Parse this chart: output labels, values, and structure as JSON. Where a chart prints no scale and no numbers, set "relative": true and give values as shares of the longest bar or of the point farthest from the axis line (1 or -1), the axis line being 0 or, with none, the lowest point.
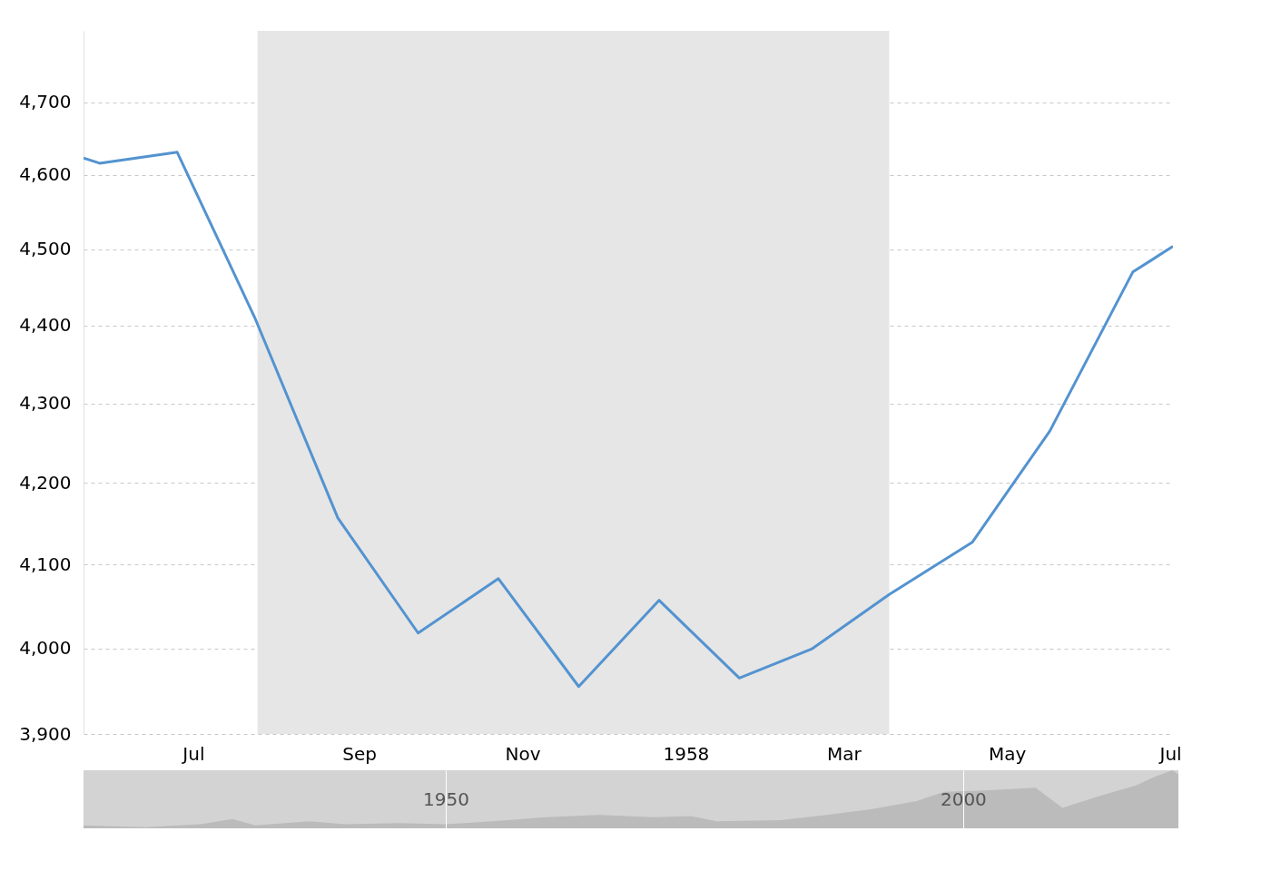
{
  "chart_data": [
    {
      "type": "line",
      "x": [
        "1957-05-21",
        "1957-05-27",
        "1957-06-25",
        "1957-07-24",
        "1957-08-24",
        "1957-09-23",
        "1957-10-23",
        "1957-11-22",
        "1957-12-22",
        "1958-01-21",
        "1958-02-17",
        "1958-03-18",
        "1958-04-18",
        "1958-05-17",
        "1958-06-17",
        "1958-07-02"
      ],
      "series": [
        {
          "color": "#5393d0",
          "values": [
            4623,
            4616,
            4631,
            4410,
            4157,
            4018,
            4083,
            3955,
            4057,
            3965,
            3999,
            4064,
            4127,
            4265,
            4470,
            4504
          ]
        }
      ],
      "xlim": [
        "1957-05-21",
        "1958-07-02"
      ],
      "xticks": [
        {
          "value": "1957-07-01",
          "label": "Jul"
        },
        {
          "value": "1957-09-01",
          "label": "Sep"
        },
        {
          "value": "1957-11-01",
          "label": "Nov"
        },
        {
          "value": "1958-01-01",
          "label": "1958"
        },
        {
          "value": "1958-03-01",
          "label": "Mar"
        },
        {
          "value": "1958-05-01",
          "label": "May"
        },
        {
          "value": "1958-07-01",
          "label": "Jul"
        }
      ],
      "ylim": [
        3900,
        4800
      ],
      "log": true,
      "yticks": [
        {
          "value": 3900,
          "label": "3,900"
        },
        {
          "value": 4000,
          "label": "4,000"
        },
        {
          "value": 4100,
          "label": "4,100"
        },
        {
          "value": 4200,
          "label": "4,200"
        },
        {
          "value": 4300,
          "label": "4,300"
        },
        {
          "value": 4400,
          "label": "4,400"
        },
        {
          "value": 4500,
          "label": "4,500"
        },
        {
          "value": 4600,
          "label": "4,600"
        },
        {
          "value": 4700,
          "label": "4,700"
        }
      ],
      "bands": [
        {
          "axis": "x",
          "from": "1957-07-25",
          "to": "1958-03-18",
          "color": "#e6e6e6"
        }
      ],
      "grid": "y",
      "legend": false
    },
    {
      "type": "area",
      "relative": true,
      "x": [
        1915.0,
        1921,
        1926.3,
        1929.4,
        1931.6,
        1936.8,
        1940.3,
        1945.5,
        1950,
        1956,
        1959.6,
        1964.8,
        1970.1,
        1973.7,
        1976.2,
        1982.4,
        1986.8,
        1991.1,
        1995.5,
        1998.2,
        2001.7,
        2007,
        2009.6,
        2013.2,
        2016.7,
        2018.4,
        2020.2,
        2020.8
      ],
      "series": [
        {
          "color": "#bbbbbb",
          "values": [
            0.05,
            0.02,
            0.07,
            0.16,
            0.05,
            0.12,
            0.07,
            0.09,
            0.07,
            0.14,
            0.19,
            0.23,
            0.19,
            0.21,
            0.12,
            0.14,
            0.23,
            0.33,
            0.47,
            0.63,
            0.65,
            0.7,
            0.35,
            0.56,
            0.74,
            0.88,
            1.0,
            0.93
          ]
        }
      ],
      "xlim": [
        1915.0,
        2020.8
      ],
      "xticks": [
        1950,
        2000
      ],
      "grid": "x",
      "legend": false
    }
  ]
}
